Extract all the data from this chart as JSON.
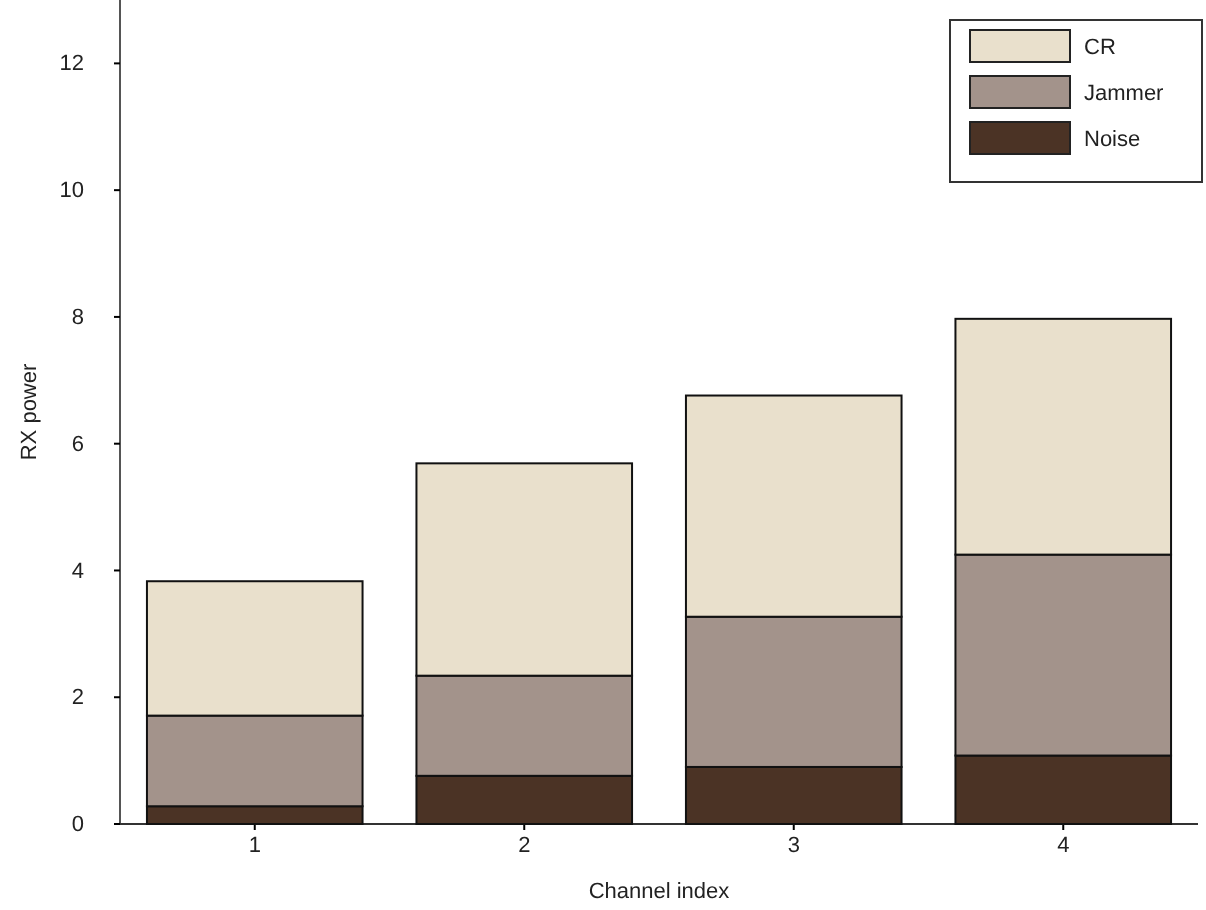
{
  "chart_data": {
    "type": "bar",
    "stacked": true,
    "xlabel": "Channel index",
    "ylabel": "RX power",
    "categories": [
      "1",
      "2",
      "3",
      "4"
    ],
    "ylim": [
      0,
      13
    ],
    "yticks": [
      0,
      2,
      4,
      6,
      8,
      10,
      12
    ],
    "legend": "top right",
    "grid": false,
    "series": [
      {
        "name": "Noise",
        "color": "#4b3325",
        "values": [
          0.28,
          0.76,
          0.9,
          1.08
        ]
      },
      {
        "name": "Jammer",
        "color": "#a3938b",
        "values": [
          1.43,
          1.58,
          2.37,
          3.17
        ]
      },
      {
        "name": "CR",
        "color": "#e9e0cc",
        "values": [
          2.12,
          3.35,
          3.49,
          3.72
        ]
      }
    ]
  }
}
